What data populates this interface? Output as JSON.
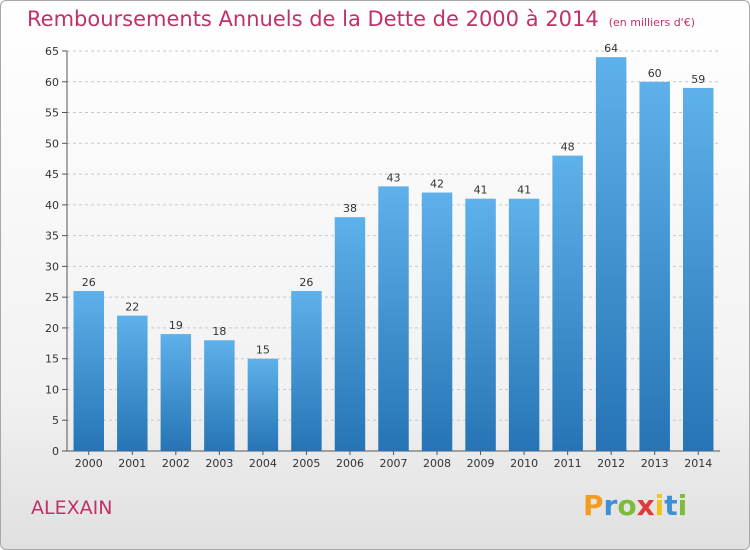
{
  "title": "Remboursements Annuels de la Dette de 2000 à 2014",
  "subtitle": "(en milliers d'€)",
  "city": "ALEXAIN",
  "logo": {
    "letters": [
      "P",
      "r",
      "o",
      "x",
      "i",
      "t",
      "i"
    ],
    "colors": [
      "#f39c1f",
      "#3d8fd6",
      "#7dbb3a",
      "#e03a3a",
      "#f0c419",
      "#3d8fd6",
      "#7dbb3a"
    ]
  },
  "colors": {
    "title": "#c0306a",
    "bar_top": "#5eb1ea",
    "bar_bottom": "#2674b5",
    "grid": "#c8c8c8"
  },
  "chart_data": {
    "type": "bar",
    "title": "Remboursements Annuels de la Dette de 2000 à 2014",
    "xlabel": "",
    "ylabel": "",
    "categories": [
      "2000",
      "2001",
      "2002",
      "2003",
      "2004",
      "2005",
      "2006",
      "2007",
      "2008",
      "2009",
      "2010",
      "2011",
      "2012",
      "2013",
      "2014"
    ],
    "values": [
      26,
      22,
      19,
      18,
      15,
      26,
      38,
      43,
      42,
      41,
      41,
      48,
      64,
      60,
      59
    ],
    "ylim": [
      0,
      65
    ],
    "yticks": [
      0,
      5,
      10,
      15,
      20,
      25,
      30,
      35,
      40,
      45,
      50,
      55,
      60,
      65
    ],
    "grid": true
  }
}
